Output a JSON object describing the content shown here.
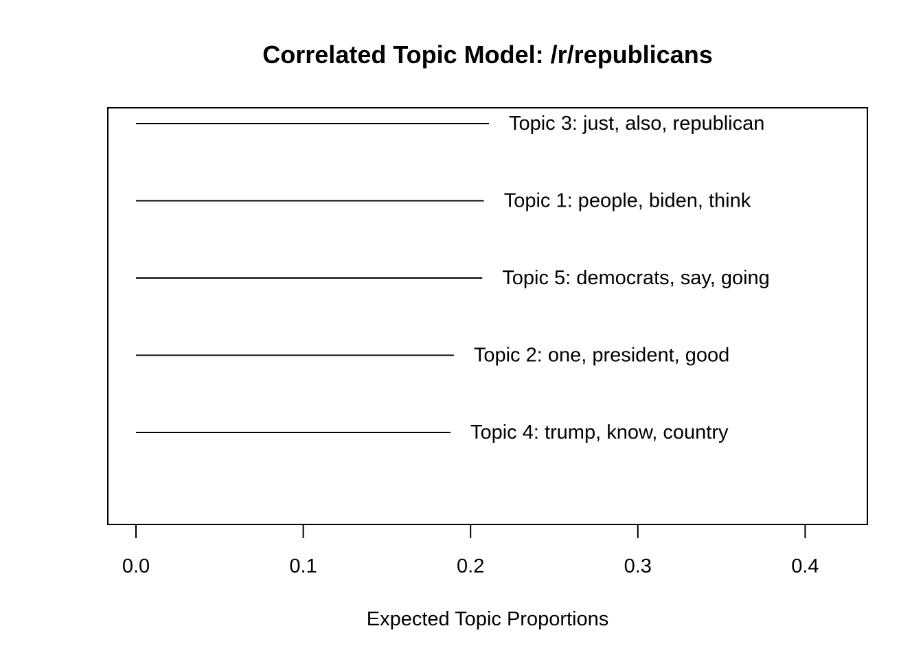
{
  "chart_data": {
    "type": "bar",
    "orientation": "horizontal",
    "title": "Correlated Topic Model: /r/republicans",
    "xlabel": "Expected Topic Proportions",
    "ylabel": "",
    "xlim": [
      0.0,
      0.44
    ],
    "xticks": [
      0.0,
      0.1,
      0.2,
      0.3,
      0.4
    ],
    "xtick_labels": [
      "0.0",
      "0.1",
      "0.2",
      "0.3",
      "0.4"
    ],
    "grid": false,
    "categories": [
      "Topic 3: just, also, republican",
      "Topic 1: people, biden, think",
      "Topic 5: democrats, say, going",
      "Topic 2: one, president, good",
      "Topic 4: trump, know, country"
    ],
    "values": [
      0.211,
      0.208,
      0.207,
      0.19,
      0.188
    ],
    "colors": {
      "line": "#000000",
      "background": "#ffffff"
    }
  }
}
